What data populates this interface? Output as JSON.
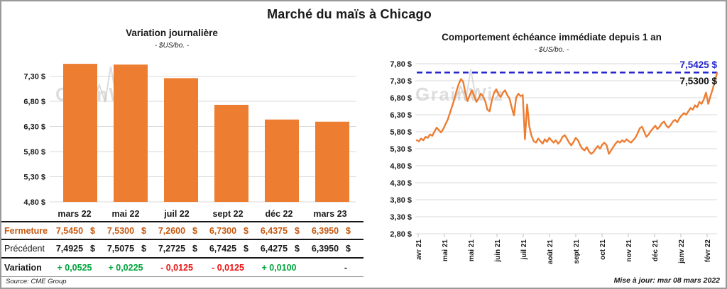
{
  "page": {
    "title": "Marché du maïs à Chicago",
    "source": "Source: CME Group",
    "updated": "Mise à jour: mar 08 mars 2022",
    "watermark": "GrainWiz"
  },
  "colors": {
    "accent_orange": "#ED7D31",
    "accent_blue": "#2323CE",
    "fermeture_bg": "#FBE5D6",
    "fermeture_text": "#C55A11",
    "positive_green": "#00A43B",
    "negative_red": "#EE1111",
    "gridline": "#DADADA",
    "tick_gray": "#BFBFBF",
    "watermark_gray": "#C4C4C4",
    "frame_border": "#9A9A9A"
  },
  "chart_data": [
    {
      "type": "bar",
      "title": "Variation  journalière",
      "subtitle": "- $US/bo. -",
      "xlabel": "",
      "ylabel": "",
      "categories": [
        "mars 22",
        "mai 22",
        "juil 22",
        "sept 22",
        "déc 22",
        "mars 23"
      ],
      "values": [
        7.545,
        7.53,
        7.26,
        6.73,
        6.4375,
        6.395
      ],
      "yticks": [
        7.3,
        6.8,
        6.3,
        5.8,
        5.3,
        4.8
      ],
      "ylim": [
        4.8,
        7.8
      ],
      "grid": true,
      "legend": "none",
      "bar_color": "#ED7D31"
    },
    {
      "type": "line",
      "title": "Comportement  échéance  immédiate  depuis 1 an",
      "subtitle": "- $US/bo. -",
      "xlabel": "",
      "ylabel": "",
      "x_ticks": [
        "avr 21",
        "mai 21",
        "mai 21",
        "juin 21",
        "juil 21",
        "août 21",
        "sept 21",
        "oct 21",
        "nov 21",
        "déc 21",
        "janv 22",
        "févr 22"
      ],
      "yticks": [
        7.8,
        7.3,
        6.8,
        6.3,
        5.8,
        5.3,
        4.8,
        4.3,
        3.8,
        3.3,
        2.8
      ],
      "ylim": [
        2.8,
        7.8
      ],
      "grid": true,
      "legend": "none",
      "line_color": "#ED7D31",
      "max_line": {
        "value": 7.5425,
        "label": "7,5425 $",
        "color": "#2323CE"
      },
      "last_value": 7.53,
      "last_label": "7,5300 $",
      "values": [
        5.55,
        5.52,
        5.6,
        5.55,
        5.65,
        5.62,
        5.72,
        5.68,
        5.8,
        5.92,
        5.85,
        5.78,
        5.88,
        6.02,
        6.15,
        6.35,
        6.55,
        6.75,
        7.0,
        7.2,
        7.35,
        7.28,
        6.95,
        6.7,
        6.88,
        7.02,
        6.85,
        6.68,
        6.78,
        6.92,
        6.85,
        6.7,
        6.45,
        6.4,
        6.72,
        6.95,
        7.05,
        6.9,
        6.82,
        6.95,
        7.02,
        6.88,
        6.78,
        6.52,
        6.28,
        6.8,
        6.92,
        6.85,
        6.88,
        5.58,
        6.6,
        5.95,
        5.68,
        5.52,
        5.48,
        5.6,
        5.52,
        5.45,
        5.58,
        5.5,
        5.62,
        5.55,
        5.48,
        5.55,
        5.45,
        5.52,
        5.65,
        5.7,
        5.6,
        5.48,
        5.4,
        5.5,
        5.62,
        5.55,
        5.4,
        5.3,
        5.25,
        5.35,
        5.22,
        5.15,
        5.2,
        5.3,
        5.38,
        5.3,
        5.42,
        5.48,
        5.4,
        5.15,
        5.25,
        5.35,
        5.45,
        5.52,
        5.48,
        5.55,
        5.5,
        5.58,
        5.52,
        5.48,
        5.55,
        5.62,
        5.75,
        5.9,
        5.95,
        5.8,
        5.65,
        5.72,
        5.82,
        5.9,
        5.98,
        5.88,
        5.95,
        6.05,
        6.1,
        5.98,
        5.92,
        6.0,
        6.1,
        6.15,
        6.08,
        6.2,
        6.28,
        6.35,
        6.3,
        6.4,
        6.5,
        6.45,
        6.58,
        6.52,
        6.68,
        6.62,
        6.75,
        6.95,
        6.62,
        6.85,
        7.05,
        7.3,
        7.53
      ]
    }
  ],
  "table": {
    "col_headers": [
      "mars 22",
      "mai 22",
      "juil 22",
      "sept 22",
      "déc 22",
      "mars 23"
    ],
    "unit": "$",
    "rows": [
      {
        "label": "Fermeture",
        "values": [
          "7,5450",
          "7,5300",
          "7,2600",
          "6,7300",
          "6,4375",
          "6,3950"
        ],
        "with_unit": true
      },
      {
        "label": "Précédent",
        "values": [
          "7,4925",
          "7,5075",
          "7,2725",
          "6,7425",
          "6,4275",
          "6,3950"
        ],
        "with_unit": true
      },
      {
        "label": "Variation",
        "values": [
          "+ 0,0525",
          "+ 0,0225",
          "- 0,0125",
          "- 0,0125",
          "+ 0,0100",
          "-"
        ],
        "value_colors": [
          "green",
          "green",
          "red",
          "red",
          "green",
          "black"
        ],
        "with_unit": false
      }
    ]
  }
}
